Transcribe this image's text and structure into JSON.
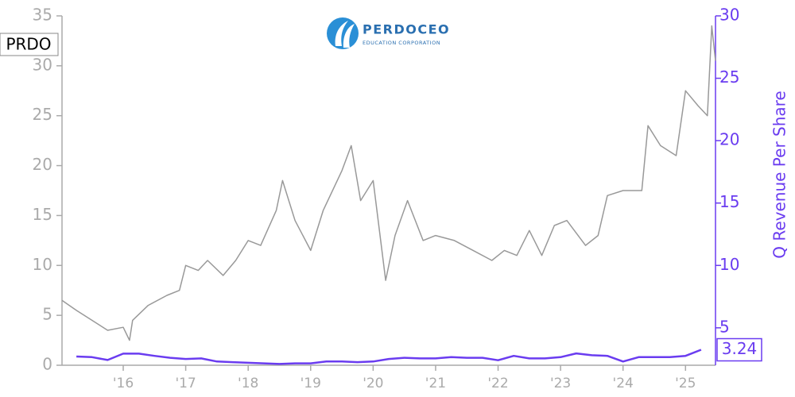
{
  "chart_data": {
    "type": "line",
    "logo_title": "PERDOCEO",
    "logo_subtitle": "EDUCATION CORPORATION",
    "xlim": [
      2015.02,
      2025.48
    ],
    "xticks": [
      {
        "value": 2016,
        "label": "'16"
      },
      {
        "value": 2017,
        "label": "'17"
      },
      {
        "value": 2018,
        "label": "'18"
      },
      {
        "value": 2019,
        "label": "'19"
      },
      {
        "value": 2020,
        "label": "'20"
      },
      {
        "value": 2021,
        "label": "'21"
      },
      {
        "value": 2022,
        "label": "'22"
      },
      {
        "value": 2023,
        "label": "'23"
      },
      {
        "value": 2024,
        "label": "'24"
      },
      {
        "value": 2025,
        "label": "'25"
      }
    ],
    "ylim": [
      0,
      35
    ],
    "yticks": [
      0,
      5,
      10,
      15,
      20,
      25,
      30,
      35
    ],
    "y2lim": [
      2,
      30
    ],
    "y2ticks": [
      5,
      10,
      15,
      20,
      25,
      30
    ],
    "series": [
      {
        "name": "PRDO",
        "color": "#999999",
        "x": [
          2015.02,
          2015.25,
          2015.5,
          2015.75,
          2016.0,
          2016.1,
          2016.15,
          2016.4,
          2016.7,
          2016.9,
          2017.0,
          2017.2,
          2017.35,
          2017.6,
          2017.8,
          2018.0,
          2018.2,
          2018.45,
          2018.55,
          2018.75,
          2019.0,
          2019.2,
          2019.5,
          2019.65,
          2019.8,
          2020.0,
          2020.2,
          2020.35,
          2020.55,
          2020.8,
          2021.0,
          2021.3,
          2021.6,
          2021.9,
          2022.1,
          2022.3,
          2022.5,
          2022.7,
          2022.9,
          2023.1,
          2023.4,
          2023.6,
          2023.75,
          2024.0,
          2024.3,
          2024.4,
          2024.6,
          2024.85,
          2025.0,
          2025.2,
          2025.35,
          2025.42,
          2025.48
        ],
        "values": [
          6.5,
          5.5,
          4.5,
          3.5,
          3.8,
          2.5,
          4.5,
          6.0,
          7.0,
          7.5,
          10.0,
          9.5,
          10.5,
          9.0,
          10.5,
          12.5,
          12.0,
          15.5,
          18.5,
          14.5,
          11.5,
          15.5,
          19.5,
          22.0,
          16.5,
          18.5,
          8.5,
          13.0,
          16.5,
          12.5,
          13.0,
          12.5,
          11.5,
          10.5,
          11.5,
          11.0,
          13.5,
          11.0,
          14.0,
          14.5,
          12.0,
          13.0,
          17.0,
          17.5,
          17.5,
          24.0,
          22.0,
          21.0,
          27.5,
          26.0,
          25.0,
          34.0,
          30.5
        ]
      },
      {
        "name": "Q Revenue Per Share",
        "color": "#6a3cf0",
        "axis": "y2",
        "x": [
          2015.25,
          2015.5,
          2015.75,
          2016.0,
          2016.25,
          2016.5,
          2016.75,
          2017.0,
          2017.25,
          2017.5,
          2017.75,
          2018.0,
          2018.25,
          2018.5,
          2018.75,
          2019.0,
          2019.25,
          2019.5,
          2019.75,
          2020.0,
          2020.25,
          2020.5,
          2020.75,
          2021.0,
          2021.25,
          2021.5,
          2021.75,
          2022.0,
          2022.25,
          2022.5,
          2022.75,
          2023.0,
          2023.25,
          2023.5,
          2023.75,
          2024.0,
          2024.25,
          2024.5,
          2024.75,
          2025.0,
          2025.25
        ],
        "values": [
          2.7,
          2.65,
          2.42,
          2.93,
          2.93,
          2.75,
          2.6,
          2.5,
          2.55,
          2.3,
          2.25,
          2.2,
          2.15,
          2.1,
          2.15,
          2.15,
          2.3,
          2.3,
          2.25,
          2.3,
          2.5,
          2.6,
          2.55,
          2.55,
          2.65,
          2.6,
          2.6,
          2.4,
          2.75,
          2.55,
          2.55,
          2.65,
          2.95,
          2.8,
          2.75,
          2.3,
          2.65,
          2.65,
          2.65,
          2.75,
          3.24
        ]
      }
    ]
  }
}
